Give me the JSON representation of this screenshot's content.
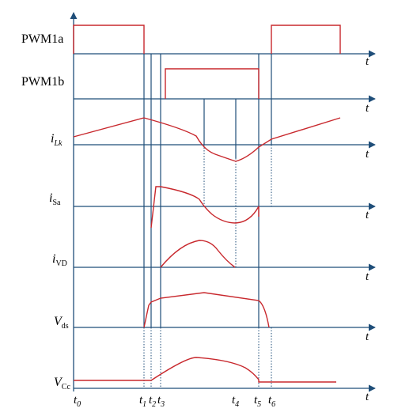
{
  "colors": {
    "axis": "#1f4e79",
    "wave": "#c8282d",
    "text": "#000000"
  },
  "signals": {
    "pwm1a": {
      "label": "PWM1a"
    },
    "pwm1b": {
      "label": "PWM1b"
    },
    "ilk": {
      "main": "i",
      "sub": "Lk"
    },
    "isa": {
      "main": "i",
      "sub": "Sa"
    },
    "ivd": {
      "main": "i",
      "sub": "VD"
    },
    "vds": {
      "main": "V",
      "sub": "ds"
    },
    "vcc": {
      "main": "V",
      "sub": "Cc"
    }
  },
  "axis_t_label": "t",
  "time_ticks": [
    {
      "main": "t",
      "sub": "0"
    },
    {
      "main": "t",
      "sub": "1"
    },
    {
      "main": "t",
      "sub": "2"
    },
    {
      "main": "t",
      "sub": "3"
    },
    {
      "main": "t",
      "sub": "4"
    },
    {
      "main": "t",
      "sub": "5"
    },
    {
      "main": "t",
      "sub": "6"
    }
  ]
}
